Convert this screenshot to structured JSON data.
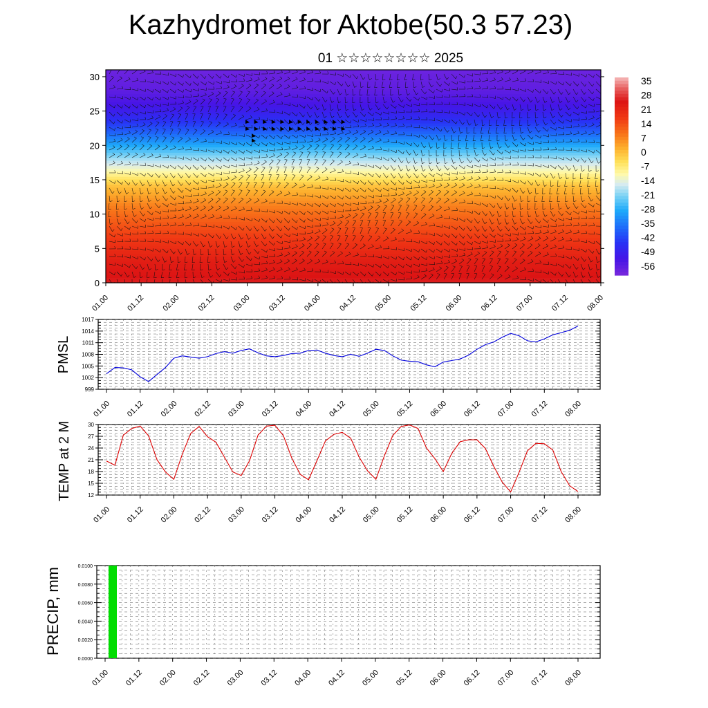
{
  "title": "Kazhydromet for Aktobe(50.3 57.23)",
  "subtitle": "01 ☆☆☆☆☆☆☆☆ 2025",
  "time_labels": [
    "01.00",
    "01.12",
    "02.00",
    "02.12",
    "03.00",
    "03.12",
    "04.00",
    "04.12",
    "05.00",
    "05.12",
    "06.00",
    "06.12",
    "07.00",
    "07.12",
    "08.00"
  ],
  "colors": {
    "pmsl_line": "#0000dd",
    "temp_line": "#dd0000",
    "precip_bar": "#00dd00"
  },
  "chart_data": [
    {
      "type": "heatmap",
      "title": "",
      "y_ticks": [
        0,
        5,
        10,
        15,
        20,
        25,
        30
      ],
      "ylim": [
        0,
        31
      ],
      "colorbar_labels": [
        "35",
        "28",
        "21",
        "14",
        "7",
        "0",
        "-7",
        "-14",
        "-21",
        "-28",
        "-35",
        "-42",
        "-49",
        "-56"
      ],
      "colorbar_range": [
        -60,
        38
      ],
      "overlay": "wind barbs",
      "levels_temp": [
        {
          "y": 0,
          "t": 27
        },
        {
          "y": 3,
          "t": 24
        },
        {
          "y": 7,
          "t": 17
        },
        {
          "y": 11,
          "t": 9
        },
        {
          "y": 14,
          "t": 1
        },
        {
          "y": 16,
          "t": -9
        },
        {
          "y": 18,
          "t": -18
        },
        {
          "y": 20,
          "t": -28
        },
        {
          "y": 22,
          "t": -38
        },
        {
          "y": 24,
          "t": -46
        },
        {
          "y": 26,
          "t": -52
        },
        {
          "y": 28,
          "t": -56
        },
        {
          "y": 31,
          "t": -58
        }
      ]
    },
    {
      "type": "line",
      "ylabel": "PMSL",
      "y_ticks": [
        999,
        1002,
        1005,
        1008,
        1011,
        1014,
        1017
      ],
      "ylim": [
        999,
        1017
      ],
      "x_hours": [
        0,
        3,
        6,
        9,
        12,
        15,
        18,
        21,
        24,
        27,
        30,
        33,
        36,
        39,
        42,
        45,
        48,
        51,
        54,
        57,
        60,
        63,
        66,
        69,
        72,
        75,
        78,
        81,
        84,
        87,
        90,
        93,
        96,
        99,
        102,
        105,
        108,
        111,
        114,
        117,
        120,
        123,
        126,
        129,
        132,
        135,
        138,
        141,
        144,
        147,
        150,
        153,
        156,
        159,
        162,
        165,
        168
      ],
      "values": [
        1003.0,
        1004.6,
        1004.5,
        1004.0,
        1002.2,
        1001.0,
        1002.8,
        1004.6,
        1007.0,
        1007.6,
        1007.3,
        1007.0,
        1007.4,
        1008.2,
        1008.7,
        1008.3,
        1009.0,
        1009.4,
        1008.4,
        1007.6,
        1007.4,
        1007.7,
        1008.2,
        1008.3,
        1009.0,
        1009.1,
        1008.3,
        1007.7,
        1007.4,
        1008.0,
        1007.5,
        1008.3,
        1009.3,
        1009.0,
        1007.6,
        1006.5,
        1006.2,
        1006.1,
        1005.3,
        1004.8,
        1006.0,
        1006.4,
        1006.8,
        1007.8,
        1009.3,
        1010.5,
        1011.2,
        1012.4,
        1013.4,
        1012.8,
        1011.5,
        1011.2,
        1012.0,
        1013.0,
        1013.6,
        1014.2,
        1015.3
      ]
    },
    {
      "type": "line",
      "ylabel": "TEMP at 2 M",
      "y_ticks": [
        12,
        15,
        18,
        21,
        24,
        27,
        30
      ],
      "ylim": [
        12,
        30
      ],
      "x_hours": [
        0,
        3,
        6,
        9,
        12,
        15,
        18,
        21,
        24,
        27,
        30,
        33,
        36,
        39,
        42,
        45,
        48,
        51,
        54,
        57,
        60,
        63,
        66,
        69,
        72,
        75,
        78,
        81,
        84,
        87,
        90,
        93,
        96,
        99,
        102,
        105,
        108,
        111,
        114,
        117,
        120,
        123,
        126,
        129,
        132,
        135,
        138,
        141,
        144,
        147,
        150,
        153,
        156,
        159,
        162,
        165,
        168
      ],
      "values": [
        20.7,
        19.6,
        27.3,
        29.0,
        29.6,
        27.1,
        21.0,
        17.9,
        16.0,
        22.4,
        27.7,
        29.5,
        26.9,
        25.5,
        21.7,
        17.9,
        17.0,
        20.8,
        27.3,
        29.6,
        29.8,
        27.2,
        21.5,
        17.3,
        15.9,
        20.8,
        25.8,
        27.5,
        28.0,
        26.5,
        21.7,
        18.2,
        16.0,
        22.0,
        27.2,
        29.5,
        29.9,
        29.0,
        24.0,
        21.3,
        18.0,
        22.6,
        25.6,
        26.1,
        26.1,
        23.9,
        19.3,
        15.3,
        12.8,
        17.8,
        23.3,
        25.2,
        25.1,
        23.5,
        18.0,
        14.4,
        12.9
      ]
    },
    {
      "type": "bar",
      "ylabel": "PRECIP, mm",
      "y_ticks": [
        "0.0000",
        "0.0020",
        "0.0040",
        "0.0060",
        "0.0080",
        "0.0100"
      ],
      "ylim": [
        0,
        0.01
      ],
      "bars": [
        {
          "x_hours": 0,
          "value": 0.01
        }
      ]
    }
  ]
}
